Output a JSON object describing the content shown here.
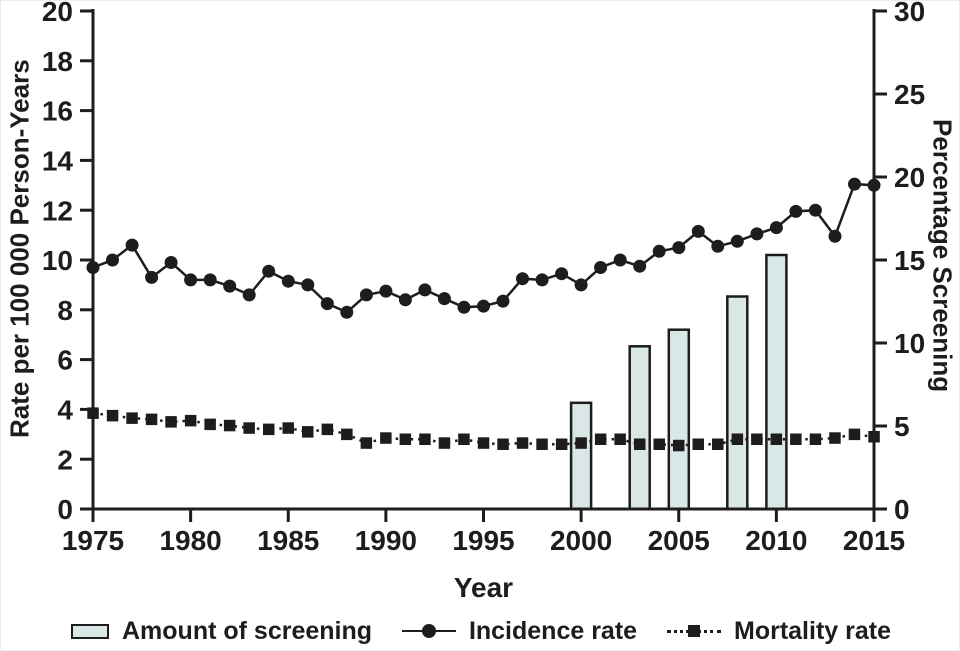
{
  "colors": {
    "ink": "#1e1c1c",
    "bar_fill": "#d9e7e7",
    "background": "#ffffff"
  },
  "chart_data": {
    "type": "bar+line",
    "title": "",
    "xlabel": "Year",
    "ylabel_left": "Rate per 100 000 Person-Years",
    "ylabel_right": "Percentage Screening",
    "x_range": [
      1975,
      2015
    ],
    "x_ticks": [
      1975,
      1980,
      1985,
      1990,
      1995,
      2000,
      2005,
      2010,
      2015
    ],
    "left_axis": {
      "min": 0,
      "max": 20,
      "ticks": [
        0,
        2,
        4,
        6,
        8,
        10,
        12,
        14,
        16,
        18,
        20
      ]
    },
    "right_axis": {
      "min": 0,
      "max": 30,
      "ticks": [
        0,
        5,
        10,
        15,
        20,
        25,
        30
      ]
    },
    "grid": false,
    "legend_position": "bottom",
    "series": [
      {
        "name": "Amount of screening",
        "type": "bar",
        "axis": "right",
        "x": [
          2000,
          2003,
          2005,
          2008,
          2010
        ],
        "values": [
          6.4,
          9.8,
          10.8,
          12.8,
          15.3
        ]
      },
      {
        "name": "Incidence rate",
        "type": "line",
        "marker": "circle",
        "linestyle": "solid",
        "axis": "left",
        "x": [
          1975,
          1976,
          1977,
          1978,
          1979,
          1980,
          1981,
          1982,
          1983,
          1984,
          1985,
          1986,
          1987,
          1988,
          1989,
          1990,
          1991,
          1992,
          1993,
          1994,
          1995,
          1996,
          1997,
          1998,
          1999,
          2000,
          2001,
          2002,
          2003,
          2004,
          2005,
          2006,
          2007,
          2008,
          2009,
          2010,
          2011,
          2012,
          2013,
          2014,
          2015
        ],
        "values": [
          9.7,
          10.0,
          10.6,
          9.3,
          9.9,
          9.2,
          9.2,
          8.95,
          8.6,
          9.55,
          9.15,
          9.0,
          8.25,
          7.9,
          8.6,
          8.75,
          8.4,
          8.8,
          8.45,
          8.1,
          8.15,
          8.35,
          9.25,
          9.2,
          9.45,
          9.0,
          9.7,
          10.0,
          9.75,
          10.35,
          10.5,
          11.15,
          10.55,
          10.75,
          11.05,
          11.3,
          11.95,
          12.0,
          10.95,
          13.05,
          13.0
        ]
      },
      {
        "name": "Mortality rate",
        "type": "line",
        "marker": "square",
        "linestyle": "dotted",
        "axis": "left",
        "x": [
          1975,
          1976,
          1977,
          1978,
          1979,
          1980,
          1981,
          1982,
          1983,
          1984,
          1985,
          1986,
          1987,
          1988,
          1989,
          1990,
          1991,
          1992,
          1993,
          1994,
          1995,
          1996,
          1997,
          1998,
          1999,
          2000,
          2001,
          2002,
          2003,
          2004,
          2005,
          2006,
          2007,
          2008,
          2009,
          2010,
          2011,
          2012,
          2013,
          2014,
          2015
        ],
        "values": [
          3.85,
          3.75,
          3.65,
          3.6,
          3.5,
          3.55,
          3.4,
          3.35,
          3.25,
          3.2,
          3.25,
          3.1,
          3.2,
          3.0,
          2.65,
          2.85,
          2.8,
          2.8,
          2.65,
          2.8,
          2.65,
          2.6,
          2.65,
          2.6,
          2.6,
          2.65,
          2.8,
          2.8,
          2.6,
          2.6,
          2.55,
          2.6,
          2.6,
          2.8,
          2.8,
          2.8,
          2.8,
          2.8,
          2.85,
          3.0,
          2.9
        ]
      }
    ]
  }
}
